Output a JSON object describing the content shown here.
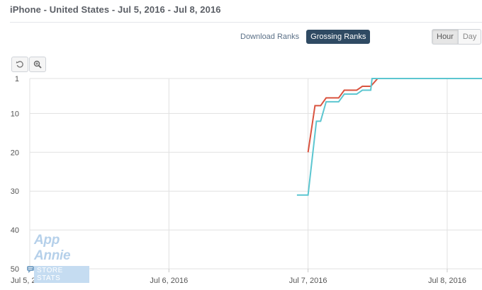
{
  "header": {
    "title": "iPhone - United States - Jul 5, 2016 - Jul 8, 2016"
  },
  "rank_toggle": {
    "download_label": "Download Ranks",
    "grossing_label": "Grossing Ranks",
    "active": "Grossing Ranks"
  },
  "granularity_toggle": {
    "hour_label": "Hour",
    "day_label": "Day",
    "active": "Hour"
  },
  "toolbar": {
    "reset_icon": "reset-zoom-icon",
    "zoom_icon": "zoom-magnifier-icon"
  },
  "watermark": {
    "logo_text": "App Annie",
    "sub_text": "STORE STATS"
  },
  "colors": {
    "series_red": "#d9533f",
    "series_cyan": "#5cc6d0",
    "grid": "#e1e1e1"
  },
  "chart_data": {
    "type": "line",
    "y_inverted": true,
    "ylim": [
      1,
      50
    ],
    "yticks": [
      1,
      10,
      20,
      30,
      40,
      50
    ],
    "xlim": [
      0,
      3.25
    ],
    "xticks": [
      {
        "value": 0,
        "label": "Jul 5, 2016"
      },
      {
        "value": 1,
        "label": "Jul 6, 2016"
      },
      {
        "value": 2,
        "label": "Jul 7, 2016"
      },
      {
        "value": 3,
        "label": "Jul 8, 2016"
      }
    ],
    "series": [
      {
        "color": "#d9533f",
        "points": [
          [
            2.0,
            20
          ],
          [
            2.05,
            8
          ],
          [
            2.09,
            8
          ],
          [
            2.13,
            6
          ],
          [
            2.22,
            6
          ],
          [
            2.26,
            4
          ],
          [
            2.35,
            4
          ],
          [
            2.39,
            3
          ],
          [
            2.45,
            3
          ],
          [
            2.5,
            1
          ],
          [
            3.25,
            1
          ]
        ]
      },
      {
        "color": "#5cc6d0",
        "points": [
          [
            1.92,
            31
          ],
          [
            2.0,
            31
          ],
          [
            2.06,
            12
          ],
          [
            2.09,
            12
          ],
          [
            2.13,
            7
          ],
          [
            2.22,
            7
          ],
          [
            2.26,
            5
          ],
          [
            2.35,
            5
          ],
          [
            2.39,
            4
          ],
          [
            2.45,
            4
          ],
          [
            2.46,
            1
          ],
          [
            3.25,
            1
          ]
        ]
      }
    ]
  }
}
